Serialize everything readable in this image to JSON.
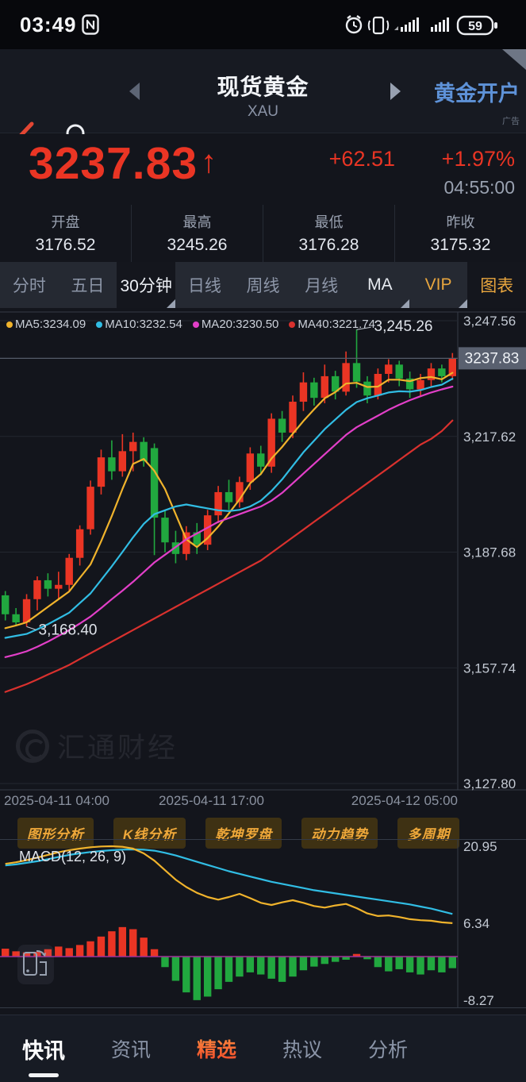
{
  "status_bar": {
    "time": "03:49",
    "battery": "59",
    "icons": [
      "nfc-icon",
      "alarm-icon",
      "vibrate-icon",
      "signal-icon",
      "signal-icon",
      "battery-icon"
    ]
  },
  "header": {
    "title": "现货黄金",
    "subtitle": "XAU",
    "action": "黄金开户",
    "ad_label": "广告"
  },
  "quote": {
    "price": "3237.83",
    "arrow": "↑",
    "change": "+62.51",
    "change_pct": "+1.97%",
    "time": "04:55:00",
    "stats": [
      {
        "label": "开盘",
        "value": "3176.52"
      },
      {
        "label": "最高",
        "value": "3245.26"
      },
      {
        "label": "最低",
        "value": "3176.28"
      },
      {
        "label": "昨收",
        "value": "3175.32"
      }
    ]
  },
  "tabs": {
    "items": [
      {
        "label": "分时",
        "style": "normal"
      },
      {
        "label": "五日",
        "style": "normal"
      },
      {
        "label": "30分钟",
        "style": "sel",
        "corner": true
      },
      {
        "label": "日线",
        "style": "normal"
      },
      {
        "label": "周线",
        "style": "normal"
      },
      {
        "label": "月线",
        "style": "normal"
      },
      {
        "label": "MA",
        "style": "white",
        "corner": true
      },
      {
        "label": "VIP",
        "style": "orange",
        "corner": true
      },
      {
        "label": "图表",
        "style": "orange darkbg"
      }
    ],
    "selected": "30分钟"
  },
  "colors": {
    "up": "#ea3524",
    "down": "#21a83f",
    "ma5": "#f0b32c",
    "ma10": "#31bde4",
    "ma20": "#e23fc8",
    "ma40": "#d9312e",
    "accent_orange": "#e9a63e",
    "link_blue": "#5e92d8",
    "grid": "#23272f",
    "axis_text": "#c3c9d3",
    "price_tag_bg": "#59606f",
    "zero_line": "#a2309a"
  },
  "chart_data": [
    {
      "type": "candlestick",
      "period": "30分钟",
      "legend": [
        {
          "name": "MA5",
          "value": "3234.09",
          "color": "#f0b32c"
        },
        {
          "name": "MA10",
          "value": "3232.54",
          "color": "#31bde4"
        },
        {
          "name": "MA20",
          "value": "3230.50",
          "color": "#e23fc8"
        },
        {
          "name": "MA40",
          "value": "3221.74",
          "color": "#d9312e"
        }
      ],
      "y_axis": {
        "top_value": 3247.56,
        "bottom_value": 3127.8
      },
      "y_gridlines": [
        3247.56,
        3217.62,
        3187.68,
        3157.74,
        3127.8
      ],
      "y_axis_labels": [
        "3,247.56",
        "3,217.62",
        "3,187.68",
        "3,157.74",
        "3,127.80"
      ],
      "current_price": 3237.83,
      "current_price_label": "3237.83",
      "high_annotation": {
        "text": "3,245.26",
        "index": 33,
        "value": 3245.26
      },
      "low_annotation": {
        "text": "3,168.40",
        "index": 2,
        "value": 3168.4
      },
      "x_labels": [
        "2025-04-11 04:00",
        "2025-04-11 17:00",
        "2025-04-12 05:00"
      ],
      "watermark": "汇通财经",
      "candles": [
        [
          3176.5,
          3177.6,
          3170.0,
          3171.6
        ],
        [
          3171.6,
          3173.2,
          3168.8,
          3169.5
        ],
        [
          3169.5,
          3176.8,
          3168.4,
          3175.5
        ],
        [
          3175.5,
          3181.4,
          3172.6,
          3180.4
        ],
        [
          3180.4,
          3182.2,
          3176.2,
          3178.2
        ],
        [
          3178.2,
          3182.6,
          3175.4,
          3179.2
        ],
        [
          3179.2,
          3187.2,
          3177.6,
          3186.2
        ],
        [
          3186.2,
          3194.6,
          3184.2,
          3193.6
        ],
        [
          3193.6,
          3206.2,
          3192.2,
          3204.6
        ],
        [
          3204.6,
          3214.2,
          3202.6,
          3212.2
        ],
        [
          3212.2,
          3216.6,
          3206.4,
          3208.6
        ],
        [
          3208.6,
          3218.2,
          3207.2,
          3213.8
        ],
        [
          3213.8,
          3218.6,
          3208.6,
          3216.2
        ],
        [
          3216.2,
          3217.4,
          3209.8,
          3211.2
        ],
        [
          3214.6,
          3215.8,
          3186.9,
          3196.6
        ],
        [
          3196.6,
          3198.4,
          3187.6,
          3190.2
        ],
        [
          3190.2,
          3193.2,
          3184.8,
          3187.2
        ],
        [
          3187.2,
          3194.4,
          3185.6,
          3192.8
        ],
        [
          3192.8,
          3195.2,
          3187.2,
          3189.6
        ],
        [
          3189.6,
          3198.6,
          3188.2,
          3197.2
        ],
        [
          3197.2,
          3204.8,
          3195.2,
          3203.2
        ],
        [
          3203.2,
          3206.4,
          3198.6,
          3200.6
        ],
        [
          3200.6,
          3207.2,
          3199.2,
          3205.8
        ],
        [
          3205.8,
          3214.8,
          3203.8,
          3213.2
        ],
        [
          3213.2,
          3215.2,
          3207.6,
          3209.8
        ],
        [
          3209.8,
          3223.6,
          3208.2,
          3222.2
        ],
        [
          3222.2,
          3224.2,
          3216.2,
          3218.6
        ],
        [
          3218.6,
          3228.2,
          3217.2,
          3226.6
        ],
        [
          3226.6,
          3234.2,
          3224.2,
          3231.6
        ],
        [
          3231.6,
          3232.8,
          3225.6,
          3227.6
        ],
        [
          3227.6,
          3236.2,
          3226.2,
          3233.2
        ],
        [
          3233.2,
          3234.6,
          3227.2,
          3229.2
        ],
        [
          3229.2,
          3239.6,
          3228.2,
          3236.6
        ],
        [
          3236.6,
          3245.26,
          3230.2,
          3231.8
        ],
        [
          3231.8,
          3233.2,
          3226.2,
          3228.2
        ],
        [
          3228.2,
          3235.2,
          3227.2,
          3233.8
        ],
        [
          3233.8,
          3237.6,
          3231.6,
          3236.2
        ],
        [
          3236.2,
          3237.2,
          3230.6,
          3232.6
        ],
        [
          3232.6,
          3234.4,
          3227.6,
          3229.8
        ],
        [
          3229.8,
          3233.8,
          3228.2,
          3232.2
        ],
        [
          3232.2,
          3236.6,
          3230.6,
          3235.2
        ],
        [
          3235.2,
          3236.2,
          3231.6,
          3233.2
        ],
        [
          3233.2,
          3239.2,
          3232.2,
          3237.83
        ]
      ],
      "ma5": [
        3168.0,
        3168.7,
        3169.5,
        3171.5,
        3173.5,
        3175.5,
        3177.5,
        3181.0,
        3184.5,
        3190.5,
        3197.0,
        3204.0,
        3210.5,
        3211.8,
        3208.7,
        3204.0,
        3197.5,
        3191.0,
        3189.0,
        3191.3,
        3194.3,
        3197.7,
        3201.3,
        3205.5,
        3207.9,
        3211.9,
        3214.9,
        3218.3,
        3221.6,
        3224.6,
        3227.5,
        3229.1,
        3231.3,
        3231.5,
        3230.4,
        3230.5,
        3232.3,
        3232.3,
        3231.9,
        3232.7,
        3233.0,
        3232.4,
        3234.09
      ],
      "ma10": [
        3165.5,
        3166.0,
        3166.5,
        3167.7,
        3169.0,
        3170.5,
        3172.0,
        3174.5,
        3177.0,
        3180.5,
        3184.0,
        3187.7,
        3191.5,
        3195.0,
        3197.5,
        3198.5,
        3199.5,
        3200.0,
        3199.5,
        3199.0,
        3198.5,
        3198.3,
        3198.6,
        3199.5,
        3201.0,
        3203.5,
        3206.5,
        3210.0,
        3213.5,
        3216.5,
        3219.5,
        3222.0,
        3224.5,
        3226.5,
        3227.5,
        3228.2,
        3229.0,
        3229.3,
        3229.2,
        3229.6,
        3230.4,
        3231.0,
        3232.54
      ],
      "ma20": [
        3160.5,
        3161.2,
        3162.0,
        3163.2,
        3164.5,
        3166.0,
        3167.5,
        3169.2,
        3171.0,
        3173.2,
        3175.5,
        3177.7,
        3180.0,
        3182.5,
        3185.0,
        3187.0,
        3189.0,
        3191.0,
        3192.5,
        3194.0,
        3195.5,
        3196.5,
        3197.5,
        3198.5,
        3199.5,
        3201.0,
        3203.0,
        3205.5,
        3208.0,
        3210.5,
        3213.0,
        3215.5,
        3218.0,
        3220.0,
        3221.5,
        3223.0,
        3224.5,
        3225.8,
        3227.0,
        3228.0,
        3229.0,
        3229.8,
        3230.5
      ],
      "ma40": [
        3151.5,
        3152.5,
        3153.5,
        3154.7,
        3156.0,
        3157.2,
        3158.5,
        3160.0,
        3161.5,
        3163.0,
        3164.5,
        3166.0,
        3167.5,
        3169.0,
        3170.5,
        3172.0,
        3173.5,
        3175.0,
        3176.5,
        3178.0,
        3179.5,
        3181.0,
        3182.5,
        3184.0,
        3185.5,
        3187.5,
        3189.5,
        3191.5,
        3193.5,
        3195.5,
        3197.5,
        3199.5,
        3201.5,
        3203.5,
        3205.5,
        3207.5,
        3209.5,
        3211.5,
        3213.5,
        3215.5,
        3217.0,
        3219.0,
        3221.74
      ]
    },
    {
      "type": "macd",
      "label": "MACD(12, 26, 9)",
      "y_axis_labels": [
        "20.95",
        "6.34",
        "-8.27"
      ],
      "y_label_values": [
        20.95,
        6.34,
        -8.27
      ],
      "dif": [
        17.6,
        17.9,
        18.3,
        18.8,
        19.3,
        19.8,
        20.2,
        20.5,
        20.75,
        20.9,
        20.95,
        20.85,
        20.5,
        19.6,
        18.2,
        16.4,
        14.6,
        13.2,
        12.1,
        11.3,
        10.8,
        11.3,
        11.9,
        11.1,
        10.2,
        9.8,
        10.3,
        10.7,
        10.2,
        9.6,
        9.3,
        9.7,
        10.0,
        9.2,
        8.2,
        7.7,
        7.8,
        7.5,
        7.1,
        6.9,
        6.8,
        6.5,
        6.34
      ],
      "dea": [
        17.3,
        17.5,
        17.8,
        18.1,
        18.5,
        18.9,
        19.3,
        19.6,
        19.85,
        20.05,
        20.2,
        20.3,
        20.35,
        20.3,
        20.1,
        19.7,
        19.2,
        18.6,
        18.0,
        17.4,
        16.8,
        16.2,
        15.7,
        15.2,
        14.7,
        14.2,
        13.8,
        13.4,
        13.0,
        12.6,
        12.3,
        12.0,
        11.7,
        11.4,
        11.1,
        10.8,
        10.5,
        10.2,
        9.9,
        9.5,
        9.1,
        8.6,
        8.1
      ],
      "hist": [
        1.5,
        1.0,
        0.8,
        0.9,
        1.4,
        1.9,
        1.6,
        2.2,
        2.9,
        3.8,
        4.8,
        5.6,
        5.2,
        3.6,
        1.4,
        -2.0,
        -4.6,
        -6.8,
        -8.27,
        -7.6,
        -6.2,
        -4.8,
        -3.8,
        -3.0,
        -3.4,
        -4.2,
        -4.8,
        -3.8,
        -2.6,
        -1.9,
        -1.4,
        -1.0,
        -0.6,
        0.5,
        -0.5,
        -2.0,
        -2.8,
        -2.4,
        -3.0,
        -3.4,
        -2.6,
        -3.0,
        -2.2
      ]
    }
  ],
  "tools": {
    "buttons": [
      "图形分析",
      "K线分析",
      "乾坤罗盘",
      "动力趋势",
      "多周期"
    ]
  },
  "bottom_nav": {
    "items": [
      "快讯",
      "资讯",
      "精选",
      "热议",
      "分析"
    ],
    "selected": "快讯",
    "highlighted": "精选"
  }
}
